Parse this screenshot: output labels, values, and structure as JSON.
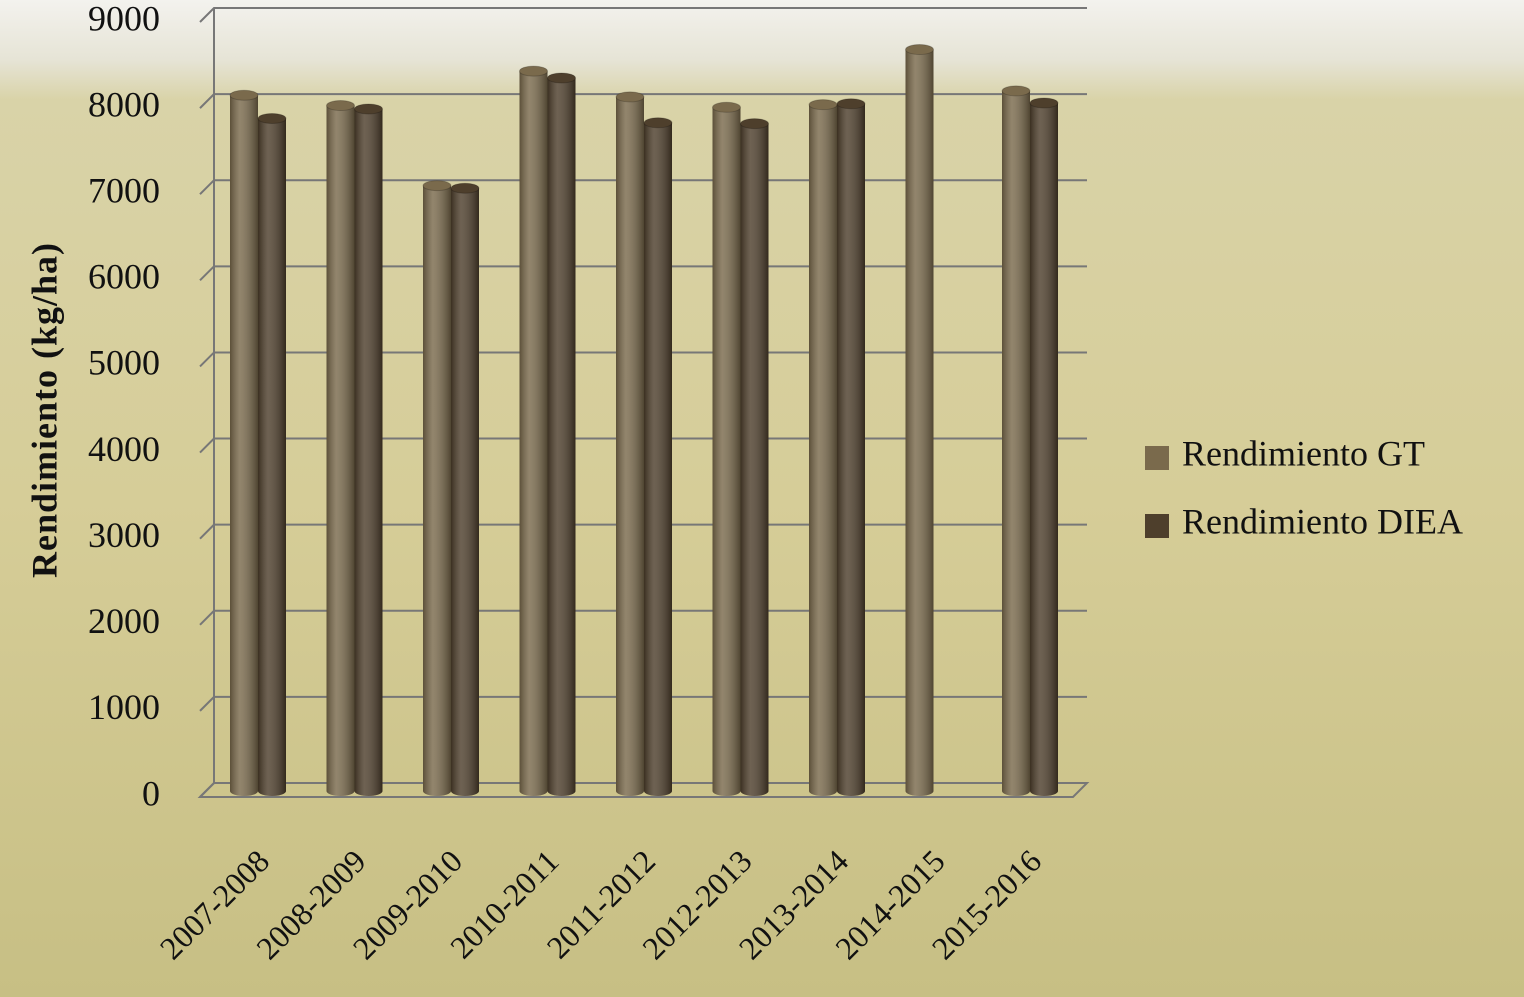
{
  "chart_data": {
    "type": "bar",
    "y_label": "Rendimiento (kg/ha)",
    "categories": [
      "2007-2008",
      "2008-2009",
      "2009-2010",
      "2010-2011",
      "2011-2012",
      "2012-2013",
      "2013-2014",
      "2014-2015",
      "2015-2016"
    ],
    "series": [
      {
        "name": "Rendimiento GT",
        "color": "#7a6a4c",
        "values": [
          8150,
          8030,
          7100,
          8430,
          8130,
          8010,
          8040,
          8680,
          8200
        ]
      },
      {
        "name": "Rendimiento DIEA",
        "color": "#4e3f2c",
        "values": [
          7880,
          7990,
          7070,
          8350,
          7830,
          7820,
          8050,
          null,
          8060
        ]
      }
    ],
    "ylim": [
      0,
      9000
    ],
    "yticks": [
      0,
      1000,
      2000,
      3000,
      4000,
      5000,
      6000,
      7000,
      8000,
      9000
    ],
    "grid": true
  }
}
